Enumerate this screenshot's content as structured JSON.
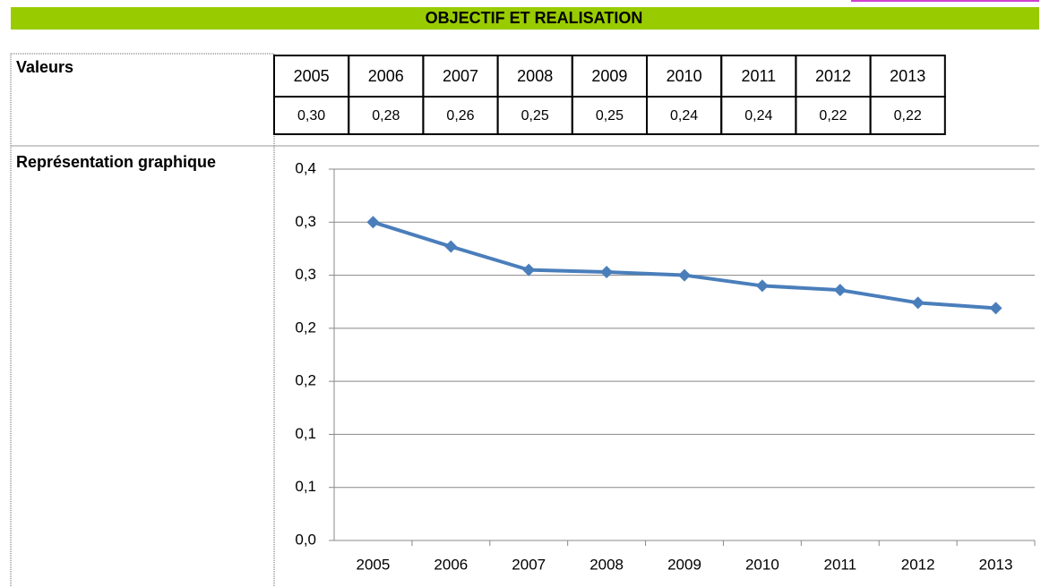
{
  "header": {
    "title": "OBJECTIF ET REALISATION"
  },
  "labels": {
    "values": "Valeurs",
    "chart": "Représentation graphique"
  },
  "table": {
    "rows": [
      [
        "2005",
        "2006",
        "2007",
        "2008",
        "2009",
        "2010",
        "2011",
        "2012",
        "2013"
      ],
      [
        "0,30",
        "0,28",
        "0,26",
        "0,25",
        "0,25",
        "0,24",
        "0,24",
        "0,22",
        "0,22"
      ]
    ]
  },
  "chart_data": {
    "type": "line",
    "categories": [
      "2005",
      "2006",
      "2007",
      "2008",
      "2009",
      "2010",
      "2011",
      "2012",
      "2013"
    ],
    "values": [
      0.3,
      0.277,
      0.255,
      0.253,
      0.25,
      0.24,
      0.236,
      0.224,
      0.219
    ],
    "color": "#4a7ebb",
    "ylim": [
      0,
      0.35
    ],
    "yticks": [
      {
        "value": 0,
        "label": "0,0"
      },
      {
        "value": 0.05,
        "label": "0,1"
      },
      {
        "value": 0.1,
        "label": "0,1"
      },
      {
        "value": 0.15,
        "label": "0,2"
      },
      {
        "value": 0.2,
        "label": "0,2"
      },
      {
        "value": 0.25,
        "label": "0,3"
      },
      {
        "value": 0.3,
        "label": "0,3"
      },
      {
        "value": 0.35,
        "label": "0,4"
      }
    ],
    "grid": true
  }
}
